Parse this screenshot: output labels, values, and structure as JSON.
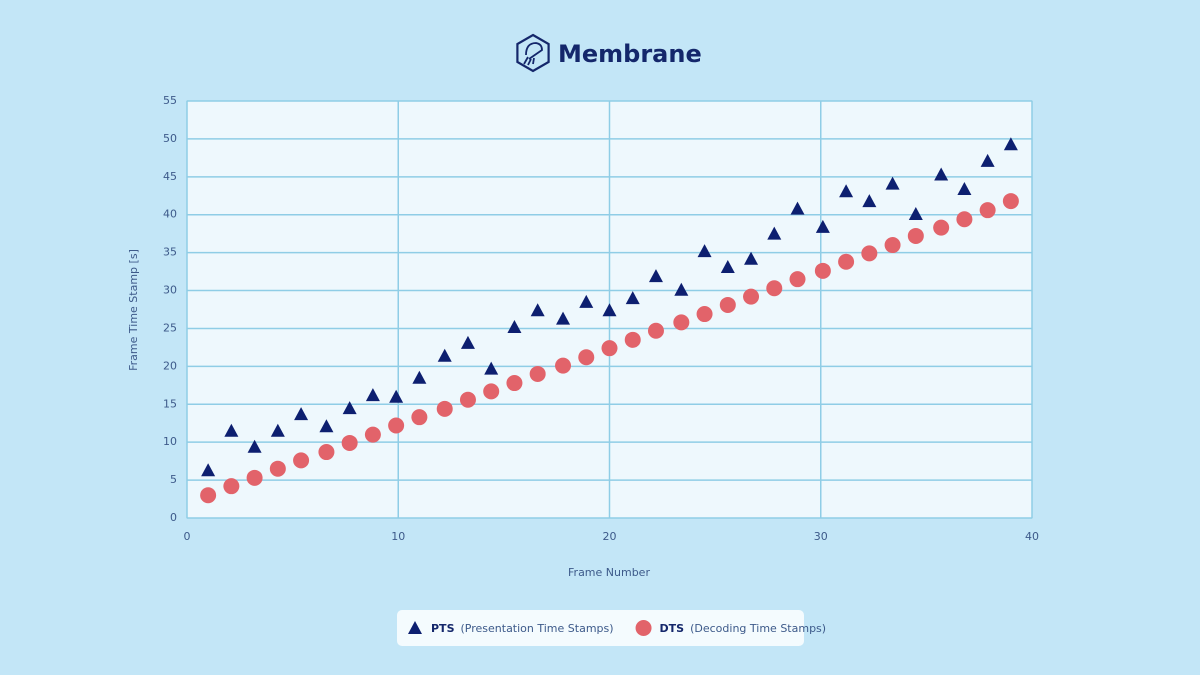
{
  "brand": "Membrane",
  "chart_data": {
    "type": "scatter",
    "x_label": "Frame Number",
    "y_label": "Frame Time Stamp [s]",
    "xlim": [
      0,
      40
    ],
    "xticks": [
      0,
      10,
      20,
      30,
      40
    ],
    "ylim": [
      0,
      55
    ],
    "yticks": [
      0,
      5,
      10,
      15,
      20,
      25,
      30,
      35,
      40,
      45,
      50,
      55
    ],
    "grid": true,
    "x": [
      1.0,
      2.1,
      3.2,
      4.3,
      5.4,
      6.6,
      7.7,
      8.8,
      9.9,
      11.0,
      12.2,
      13.3,
      14.4,
      15.5,
      16.6,
      17.8,
      18.9,
      20.0,
      21.1,
      22.2,
      23.4,
      24.5,
      25.6,
      26.7,
      27.8,
      28.9,
      30.1,
      31.2,
      32.3,
      33.4,
      34.5,
      35.7,
      36.8,
      37.9,
      39.0
    ],
    "series": [
      {
        "name": "PTS",
        "description": "(Presentation Time Stamps)",
        "marker": "triangle",
        "color": "#0d1f70",
        "values": [
          6.3,
          11.5,
          9.4,
          11.5,
          13.7,
          12.1,
          14.5,
          16.2,
          16.0,
          18.5,
          21.4,
          23.1,
          19.7,
          25.2,
          27.4,
          26.3,
          28.5,
          27.4,
          29.0,
          31.9,
          30.1,
          35.2,
          33.1,
          34.2,
          37.5,
          40.8,
          38.4,
          43.1,
          41.8,
          44.1,
          40.1,
          45.3,
          43.4,
          47.1,
          49.3
        ]
      },
      {
        "name": "DTS",
        "description": "(Decoding Time Stamps)",
        "marker": "circle",
        "color": "#e2636a",
        "values": [
          3.0,
          4.2,
          5.3,
          6.5,
          7.6,
          8.7,
          9.9,
          11.0,
          12.2,
          13.3,
          14.4,
          15.6,
          16.7,
          17.8,
          19.0,
          20.1,
          21.2,
          22.4,
          23.5,
          24.7,
          25.8,
          26.9,
          28.1,
          29.2,
          30.3,
          31.5,
          32.6,
          33.8,
          34.9,
          36.0,
          37.2,
          38.3,
          39.4,
          40.6,
          41.8
        ]
      }
    ]
  }
}
